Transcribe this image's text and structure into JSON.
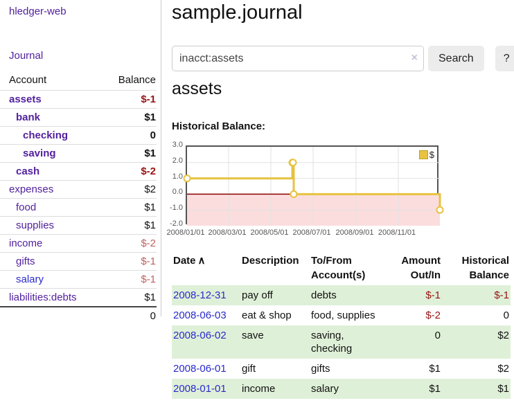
{
  "colors": {
    "link_purple": "#52219e",
    "link_blue": "#2a2acc",
    "negative_strong": "#961414",
    "negative_muted": "#c06060",
    "row_stripe_green": "#dff0d8",
    "chart_line_gold": "#e8c240",
    "chart_zero_line_red": "#8b0000",
    "chart_negative_fill_pink": "#fbdddd",
    "chart_border_gray": "#545454"
  },
  "sidebar": {
    "app_title": "hledger-web",
    "journal_link": "Journal",
    "table": {
      "account_header": "Account",
      "balance_header": "Balance",
      "rows": [
        {
          "name": "assets",
          "indent": 1,
          "bold": true,
          "name_style": "purple",
          "balance": "$-1",
          "balance_style": "neg-strong"
        },
        {
          "name": "bank",
          "indent": 2,
          "bold": true,
          "name_style": "purple",
          "balance": "$1",
          "balance_style": ""
        },
        {
          "name": "checking",
          "indent": 3,
          "bold": true,
          "name_style": "purple",
          "balance": "0",
          "balance_style": ""
        },
        {
          "name": "saving",
          "indent": 3,
          "bold": true,
          "name_style": "purple",
          "balance": "$1",
          "balance_style": ""
        },
        {
          "name": "cash",
          "indent": 2,
          "bold": true,
          "name_style": "purple",
          "balance": "$-2",
          "balance_style": "neg-strong"
        },
        {
          "name": "expenses",
          "indent": 1,
          "bold": false,
          "name_style": "purple",
          "balance": "$2",
          "balance_style": ""
        },
        {
          "name": "food",
          "indent": 2,
          "bold": false,
          "name_style": "purple",
          "balance": "$1",
          "balance_style": ""
        },
        {
          "name": "supplies",
          "indent": 2,
          "bold": false,
          "name_style": "purple",
          "balance": "$1",
          "balance_style": ""
        },
        {
          "name": "income",
          "indent": 1,
          "bold": false,
          "name_style": "purple",
          "balance": "$-2",
          "balance_style": "neg-muted"
        },
        {
          "name": "gifts",
          "indent": 2,
          "bold": false,
          "name_style": "purple",
          "balance": "$-1",
          "balance_style": "neg-muted"
        },
        {
          "name": "salary",
          "indent": 2,
          "bold": false,
          "name_style": "blue",
          "balance": "$-1",
          "balance_style": "neg-muted"
        },
        {
          "name": "liabilities:debts",
          "indent": 1,
          "bold": false,
          "name_style": "purple",
          "balance": "$1",
          "balance_style": ""
        }
      ],
      "total": "0"
    }
  },
  "main": {
    "title": "sample.journal",
    "search": {
      "value": "inacct:assets",
      "clear_icon": "×",
      "button": "Search",
      "help_button": "?"
    },
    "account_heading": "assets",
    "chart_label": "Historical Balance:"
  },
  "chart_data": {
    "type": "line",
    "style": "step",
    "title": "Historical Balance",
    "xlabel": "",
    "ylabel": "",
    "ylim": [
      -2,
      3
    ],
    "x_range_days": 365,
    "grid": true,
    "negative_region_shaded": true,
    "legend_position": "top-right",
    "legend": [
      {
        "label": "$"
      }
    ],
    "y_ticks": [
      {
        "value": 3,
        "label": "3.0"
      },
      {
        "value": 2,
        "label": "2.0"
      },
      {
        "value": 1,
        "label": "1.0"
      },
      {
        "value": 0,
        "label": "0.0"
      },
      {
        "value": -1,
        "label": "-1.0"
      },
      {
        "value": -2,
        "label": "-2.0"
      }
    ],
    "x_ticks": [
      {
        "day": 0,
        "label": "2008/01/01"
      },
      {
        "day": 60,
        "label": "2008/03/01"
      },
      {
        "day": 121,
        "label": "2008/05/01"
      },
      {
        "day": 182,
        "label": "2008/07/01"
      },
      {
        "day": 244,
        "label": "2008/09/01"
      },
      {
        "day": 305,
        "label": "2008/11/01"
      }
    ],
    "points": [
      {
        "date": "2008-01-01",
        "day": 0,
        "value": 1
      },
      {
        "date": "2008-06-01",
        "day": 152,
        "value": 2
      },
      {
        "date": "2008-06-02",
        "day": 153,
        "value": 2
      },
      {
        "date": "2008-06-03",
        "day": 154,
        "value": 0
      },
      {
        "date": "2008-12-31",
        "day": 365,
        "value": -1
      }
    ]
  },
  "register": {
    "headers": {
      "date": "Date",
      "sort_icon": "∧",
      "description": "Description",
      "to_from": "To/From Account(s)",
      "amount": "Amount Out/In",
      "historical": "Historical Balance"
    },
    "rows": [
      {
        "date": "2008-12-31",
        "description": "pay off",
        "to_from": "debts",
        "amount": "$-1",
        "amount_neg": true,
        "historical": "$-1",
        "historical_neg": true,
        "shaded": true
      },
      {
        "date": "2008-06-03",
        "description": "eat & shop",
        "to_from": "food, supplies",
        "amount": "$-2",
        "amount_neg": true,
        "historical": "0",
        "historical_neg": false,
        "shaded": false
      },
      {
        "date": "2008-06-02",
        "description": "save",
        "to_from": "saving,\nchecking",
        "amount": "0",
        "amount_neg": false,
        "historical": "$2",
        "historical_neg": false,
        "shaded": true
      },
      {
        "date": "2008-06-01",
        "description": "gift",
        "to_from": "gifts",
        "amount": "$1",
        "amount_neg": false,
        "historical": "$2",
        "historical_neg": false,
        "shaded": false
      },
      {
        "date": "2008-01-01",
        "description": "income",
        "to_from": "salary",
        "amount": "$1",
        "amount_neg": false,
        "historical": "$1",
        "historical_neg": false,
        "shaded": true
      }
    ]
  }
}
